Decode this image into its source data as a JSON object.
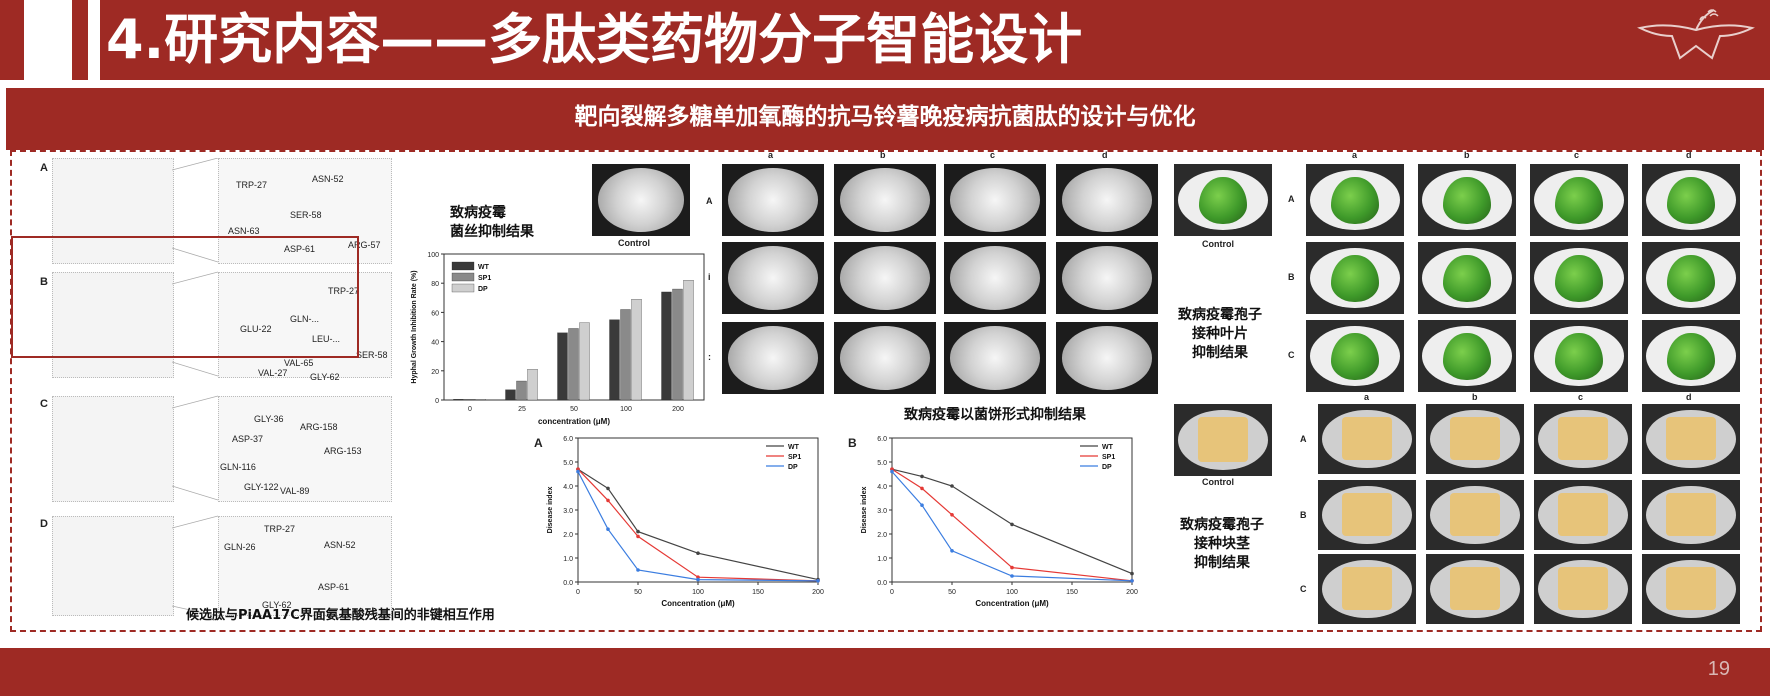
{
  "header": {
    "title": "4.研究内容——多肽类药物分子智能设计",
    "subtitle": "靶向裂解多糖单加氧酶的抗马铃薯晚疫病抗菌肽的设计与优化",
    "page_number": "19"
  },
  "structure_panel": {
    "letters": [
      "A",
      "B",
      "C",
      "D"
    ],
    "residue_labels": {
      "A": [
        "TRP-27",
        "ASN-52",
        "SER-58",
        "ASN-63",
        "ASP-61",
        "ARG-57"
      ],
      "B": [
        "TRP-27",
        "GLU-22",
        "GLN-...",
        "LEU-...",
        "VAL-65",
        "SER-58",
        "VAL-27",
        "GLY-62"
      ],
      "C": [
        "GLY-36",
        "ARG-158",
        "ASP-37",
        "ARG-153",
        "GLN-116",
        "GLY-122",
        "VAL-89"
      ],
      "D": [
        "TRP-27",
        "GLN-26",
        "ASN-52",
        "ASP-61",
        "GLY-62"
      ]
    },
    "caption": "候选肽与PiAA17C界面氨基酸残基间的非键相互作用"
  },
  "hyphae_section": {
    "title_line1": "致病疫霉",
    "title_line2": "菌丝抑制结果",
    "control_label": "Control"
  },
  "colors": {
    "brand": "#9e2a24",
    "wt": "#444444",
    "sp1": "#e53935",
    "dp": "#3b7de0",
    "bar_wt": "#3a3a3a",
    "bar_sp1": "#8a8a8a",
    "bar_dp": "#cfcfcf"
  },
  "dish_grid": {
    "col_labels": [
      "a",
      "b",
      "c",
      "d"
    ],
    "row_labels": [
      "A",
      "i",
      ":"
    ],
    "caption": "致病疫霉以菌饼形式抑制结果"
  },
  "leaf_section": {
    "control_label": "Control",
    "caption_line1": "致病疫霉孢子",
    "caption_line2": "接种叶片",
    "caption_line3": "抑制结果",
    "col_labels": [
      "a",
      "b",
      "c",
      "d"
    ],
    "row_labels": [
      "A",
      "B",
      "C"
    ]
  },
  "tuber_section": {
    "control_label": "Control",
    "caption_line1": "致病疫霉孢子",
    "caption_line2": "接种块茎",
    "caption_line3": "抑制结果",
    "col_labels": [
      "a",
      "b",
      "c",
      "d"
    ],
    "row_labels": [
      "A",
      "B",
      "C"
    ]
  },
  "chart_data": [
    {
      "type": "bar",
      "categories": [
        "0",
        "25",
        "50",
        "100",
        "200"
      ],
      "series": [
        {
          "name": "WT",
          "values": [
            0,
            7,
            46,
            55,
            74
          ]
        },
        {
          "name": "SP1",
          "values": [
            0,
            13,
            49,
            62,
            76
          ]
        },
        {
          "name": "DP",
          "values": [
            0,
            21,
            53,
            69,
            82
          ]
        }
      ],
      "xlabel": "concentration (μM)",
      "ylabel": "Hyphal Growth Inhibition Rate (%)",
      "ylim": [
        0,
        100
      ],
      "yticks": [
        "0",
        "20",
        "40",
        "60",
        "80",
        "100"
      ],
      "legend": "top-left"
    },
    {
      "type": "line",
      "panel_label": "A",
      "x": [
        0,
        25,
        50,
        100,
        200
      ],
      "series": [
        {
          "name": "WT",
          "values": [
            4.7,
            3.9,
            2.1,
            1.2,
            0.1
          ]
        },
        {
          "name": "SP1",
          "values": [
            4.7,
            3.4,
            1.9,
            0.2,
            0.05
          ]
        },
        {
          "name": "DP",
          "values": [
            4.6,
            2.2,
            0.5,
            0.1,
            0.05
          ]
        }
      ],
      "xlabel": "Concentration (μM)",
      "ylabel": "Disease index",
      "xlim": [
        0,
        200
      ],
      "ylim": [
        0,
        6
      ],
      "xticks": [
        "0",
        "50",
        "100",
        "150",
        "200"
      ],
      "yticks": [
        "0.0",
        "1.0",
        "2.0",
        "3.0",
        "4.0",
        "5.0",
        "6.0"
      ],
      "legend": "top-right"
    },
    {
      "type": "line",
      "panel_label": "B",
      "x": [
        0,
        25,
        50,
        100,
        200
      ],
      "series": [
        {
          "name": "WT",
          "values": [
            4.7,
            4.4,
            4.0,
            2.4,
            0.35
          ]
        },
        {
          "name": "SP1",
          "values": [
            4.7,
            3.9,
            2.8,
            0.6,
            0.05
          ]
        },
        {
          "name": "DP",
          "values": [
            4.6,
            3.2,
            1.3,
            0.25,
            0.05
          ]
        }
      ],
      "xlabel": "Concentration (μM)",
      "ylabel": "Disease index",
      "xlim": [
        0,
        200
      ],
      "ylim": [
        0,
        6
      ],
      "xticks": [
        "0",
        "50",
        "100",
        "150",
        "200"
      ],
      "yticks": [
        "0.0",
        "1.0",
        "2.0",
        "3.0",
        "4.0",
        "5.0",
        "6.0"
      ],
      "legend": "top-right"
    }
  ]
}
